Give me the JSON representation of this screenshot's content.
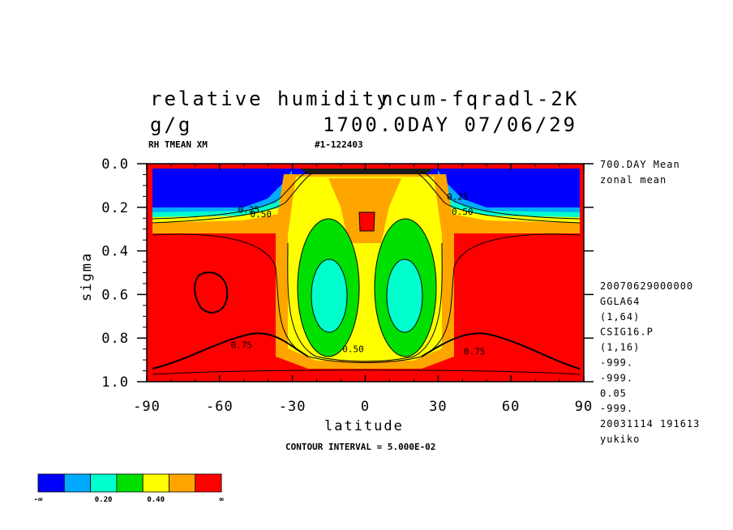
{
  "header": {
    "title_left": "relative humidity",
    "title_right": "ncum-fqradl-2K",
    "units": "g/g",
    "time": "1700.0DAY 07/06/29",
    "var_label": "RH TMEAN XM",
    "run_id": "#1-122403"
  },
  "side_info": {
    "top": [
      "700.DAY Mean",
      "zonal mean"
    ],
    "bottom": [
      "20070629000000",
      "GGLA64",
      "(1,64)",
      "CSIG16.P",
      "(1,16)",
      "-999.",
      "-999.",
      "0.05",
      "-999.",
      "20031114 191613",
      "yukiko"
    ]
  },
  "footer": {
    "contour_interval": "CONTOUR INTERVAL = 5.000E-02"
  },
  "colorbar": {
    "colors": [
      "#0000ff",
      "#00aaff",
      "#00ffcc",
      "#00e000",
      "#ffff00",
      "#ffa500",
      "#ff0000"
    ],
    "labels": [
      "-∞",
      "0.20",
      "0.40",
      "∞"
    ]
  },
  "chart_data": {
    "type": "heatmap",
    "xlabel": "latitude",
    "ylabel": "sigma",
    "xlim": [
      -90,
      90
    ],
    "ylim": [
      1.0,
      0.0
    ],
    "x_ticks": [
      "-90",
      "-60",
      "-30",
      "0",
      "30",
      "60",
      "90"
    ],
    "y_ticks": [
      "0.0",
      "0.2",
      "0.4",
      "0.6",
      "0.8",
      "1.0"
    ],
    "contour_interval": 0.05,
    "contour_labels": [
      {
        "text": "0.25",
        "lat": -48,
        "sigma": 0.21
      },
      {
        "text": "0.50",
        "lat": -43,
        "sigma": 0.23
      },
      {
        "text": "0.25",
        "lat": 38,
        "sigma": 0.15
      },
      {
        "text": "0.50",
        "lat": 40,
        "sigma": 0.22
      },
      {
        "text": "0.75",
        "lat": -51,
        "sigma": 0.83
      },
      {
        "text": "0.75",
        "lat": 45,
        "sigma": 0.86
      },
      {
        "text": "0.50",
        "lat": -5,
        "sigma": 0.85
      }
    ],
    "fields": {
      "stratosphere_rh": 0.1,
      "troposphere_rh": 0.8,
      "subtropical_min_rh": 0.35,
      "subtropical_min_sigma": 0.6,
      "subtropical_min_lat": [
        -17,
        17
      ]
    }
  }
}
